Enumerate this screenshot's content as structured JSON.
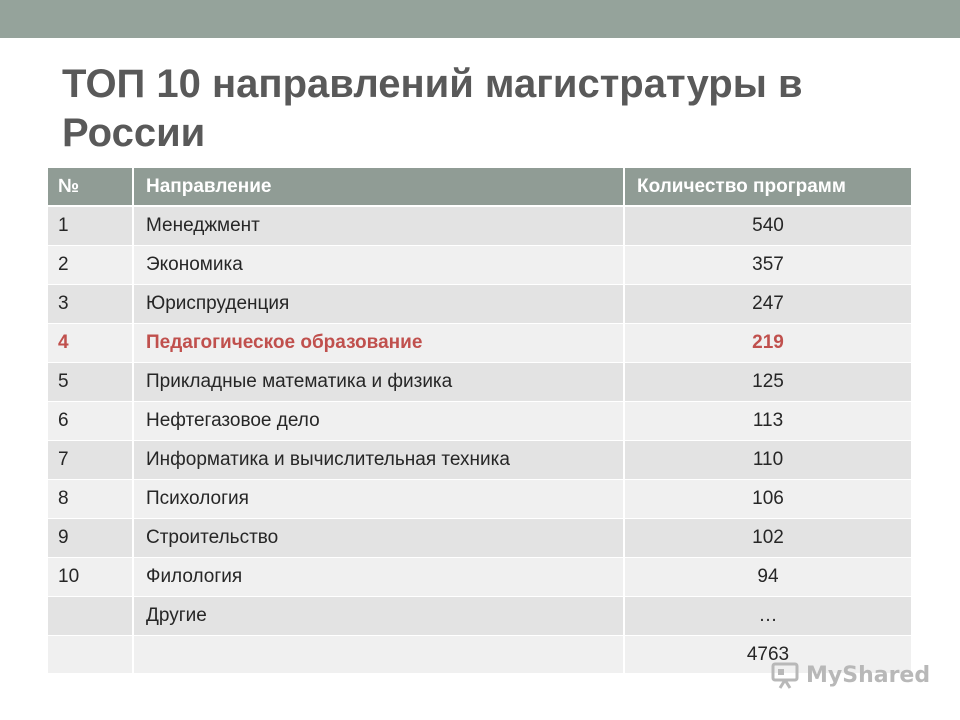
{
  "slide": {
    "title": "ТОП 10 направлений магистратуры в России"
  },
  "table": {
    "headers": [
      "№",
      "Направление",
      "Количество программ"
    ],
    "rows": [
      {
        "num": "1",
        "direction": "Менеджмент",
        "count": "540"
      },
      {
        "num": "2",
        "direction": "Экономика",
        "count": "357"
      },
      {
        "num": "3",
        "direction": "Юриспруденция",
        "count": "247"
      },
      {
        "num": "4",
        "direction": "Педагогическое образование",
        "count": "219",
        "highlighted": true
      },
      {
        "num": "5",
        "direction": "Прикладные математика и физика",
        "count": "125"
      },
      {
        "num": "6",
        "direction": "Нефтегазовое дело",
        "count": "113"
      },
      {
        "num": "7",
        "direction": "Информатика и вычислительная техника",
        "count": "110"
      },
      {
        "num": "8",
        "direction": "Психология",
        "count": "106"
      },
      {
        "num": "9",
        "direction": "Строительство",
        "count": "102"
      },
      {
        "num": "10",
        "direction": "Филология",
        "count": "94"
      },
      {
        "num": "",
        "direction": "Другие",
        "count": "…"
      },
      {
        "num": "",
        "direction": "",
        "count": "4763"
      }
    ]
  },
  "watermark": {
    "text": "MyShared",
    "icon": "presentation-board-icon"
  },
  "colors": {
    "top_bar": "#95a39b",
    "header_bg": "#909c95",
    "row_odd": "#e3e3e3",
    "row_even": "#f0f0f0",
    "highlight_text": "#c0504d",
    "title_text": "#595959"
  }
}
